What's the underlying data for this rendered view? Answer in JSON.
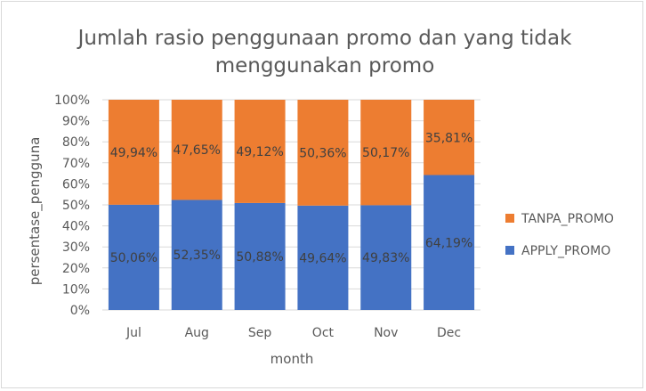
{
  "chart_data": {
    "type": "bar",
    "stacked": "percent",
    "title_lines": [
      "Jumlah rasio penggunaan promo dan yang tidak",
      "menggunakan promo"
    ],
    "xlabel": "month",
    "ylabel": "persentase_pengguna",
    "categories": [
      "Jul",
      "Aug",
      "Sep",
      "Oct",
      "Nov",
      "Dec"
    ],
    "yticks": [
      "0%",
      "10%",
      "20%",
      "30%",
      "40%",
      "50%",
      "60%",
      "70%",
      "80%",
      "90%",
      "100%"
    ],
    "ylim": [
      0,
      100
    ],
    "grid": true,
    "legend_position": "right",
    "series": [
      {
        "name": "APPLY_PROMO",
        "color": "#4472c4",
        "values": [
          50.06,
          52.35,
          50.88,
          49.64,
          49.83,
          64.19
        ],
        "labels": [
          "50,06%",
          "52,35%",
          "50,88%",
          "49,64%",
          "49,83%",
          "64,19%"
        ]
      },
      {
        "name": "TANPA_PROMO",
        "color": "#ed7d31",
        "values": [
          49.94,
          47.65,
          49.12,
          50.36,
          50.17,
          35.81
        ],
        "labels": [
          "49,94%",
          "47,65%",
          "49,12%",
          "50,36%",
          "50,17%",
          "35,81%"
        ]
      }
    ],
    "legend_order": [
      "TANPA_PROMO",
      "APPLY_PROMO"
    ]
  }
}
